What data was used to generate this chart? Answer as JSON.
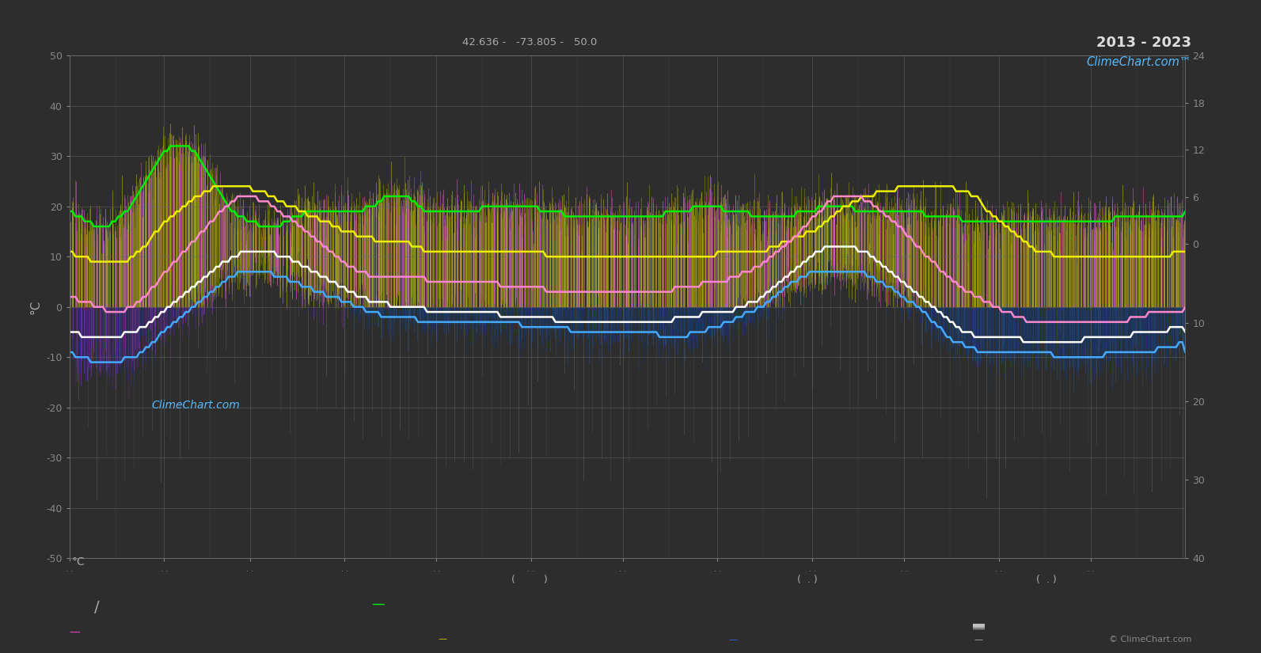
{
  "title_top": "2013 - 2023",
  "subtitle": "42.636 -   -73.805 -   50.0",
  "ylabel_left": "°C",
  "background_color": "#2d2d2d",
  "plot_bg_color": "#2d2d2d",
  "grid_color": "#666666",
  "ylim_left": [
    -50,
    50
  ],
  "ylim_right": [
    -40,
    24
  ],
  "n_days": 365,
  "abs_max_curve": [
    19,
    19,
    18,
    18,
    18,
    17,
    17,
    17,
    16,
    16,
    16,
    16,
    16,
    16,
    17,
    17,
    18,
    18,
    19,
    19,
    20,
    21,
    22,
    23,
    24,
    25,
    26,
    27,
    28,
    29,
    30,
    31,
    31,
    32,
    32,
    32,
    32,
    32,
    32,
    32,
    31,
    31,
    30,
    29,
    28,
    27,
    26,
    25,
    24,
    23,
    22,
    21,
    20,
    19,
    19,
    18,
    18,
    18,
    17,
    17,
    17,
    17,
    16,
    16,
    16,
    16,
    16,
    16,
    16,
    16,
    17,
    17,
    17,
    18,
    18,
    18,
    18,
    19,
    19,
    19,
    19,
    19,
    19,
    19,
    19,
    19,
    19,
    19,
    19,
    19,
    19,
    19,
    19,
    19,
    19,
    19,
    19,
    20,
    20,
    20,
    20,
    21,
    21,
    22,
    22,
    22,
    22,
    22,
    22,
    22,
    22,
    22,
    21,
    21,
    20,
    20,
    19,
    19,
    19,
    19,
    19,
    19,
    19,
    19,
    19,
    19,
    19,
    19,
    19,
    19,
    19,
    19,
    19,
    19,
    19,
    20,
    20,
    20,
    20,
    20,
    20,
    20,
    20,
    20,
    20,
    20,
    20,
    20,
    20,
    20,
    20,
    20,
    20,
    20,
    19,
    19,
    19,
    19,
    19,
    19,
    19,
    19,
    18,
    18,
    18,
    18,
    18,
    18,
    18,
    18,
    18,
    18,
    18,
    18,
    18,
    18,
    18,
    18,
    18,
    18,
    18,
    18,
    18,
    18,
    18,
    18,
    18,
    18,
    18,
    18,
    18,
    18,
    18,
    18,
    18,
    19,
    19,
    19,
    19,
    19,
    19,
    19,
    19,
    19,
    20,
    20,
    20,
    20,
    20,
    20,
    20,
    20,
    20,
    20,
    19,
    19,
    19,
    19,
    19,
    19,
    19,
    19,
    19,
    18,
    18,
    18,
    18,
    18,
    18,
    18,
    18,
    18,
    18,
    18,
    18,
    18,
    18,
    18,
    19,
    19,
    19,
    19,
    19,
    19,
    19,
    20,
    20,
    20,
    20,
    20,
    20,
    20,
    20,
    20,
    20,
    20,
    20,
    19,
    19,
    19,
    19,
    19,
    19,
    19,
    19,
    19,
    19,
    19,
    19,
    19,
    19,
    19,
    19,
    19,
    19,
    19,
    19,
    19,
    19,
    19,
    18,
    18,
    18,
    18,
    18,
    18,
    18,
    18,
    18,
    18,
    18,
    18,
    17,
    17,
    17,
    17,
    17,
    17,
    17,
    17,
    17,
    17,
    17,
    17,
    17,
    17,
    17,
    17,
    17,
    17,
    17,
    17,
    17,
    17,
    17,
    17,
    17,
    17,
    17,
    17,
    17,
    17,
    17,
    17,
    17,
    17,
    17,
    17,
    17,
    17,
    17,
    17,
    17,
    17,
    17,
    17,
    17,
    17,
    17,
    17,
    17,
    17,
    18,
    18,
    18,
    18,
    18,
    18,
    18,
    18,
    18,
    18,
    18,
    18,
    18,
    18,
    18,
    18,
    18,
    18,
    18,
    18,
    18,
    18,
    18,
    19
  ],
  "max_temp_curve": [
    11,
    11,
    10,
    10,
    10,
    10,
    10,
    9,
    9,
    9,
    9,
    9,
    9,
    9,
    9,
    9,
    9,
    9,
    9,
    9,
    10,
    10,
    11,
    11,
    12,
    12,
    13,
    14,
    15,
    15,
    16,
    17,
    17,
    18,
    18,
    19,
    19,
    20,
    20,
    21,
    21,
    22,
    22,
    22,
    23,
    23,
    23,
    24,
    24,
    24,
    24,
    24,
    24,
    24,
    24,
    24,
    24,
    24,
    24,
    24,
    23,
    23,
    23,
    23,
    23,
    22,
    22,
    22,
    21,
    21,
    21,
    20,
    20,
    20,
    20,
    19,
    19,
    19,
    18,
    18,
    18,
    18,
    17,
    17,
    17,
    17,
    16,
    16,
    16,
    15,
    15,
    15,
    15,
    15,
    14,
    14,
    14,
    14,
    14,
    14,
    13,
    13,
    13,
    13,
    13,
    13,
    13,
    13,
    13,
    13,
    13,
    13,
    12,
    12,
    12,
    12,
    11,
    11,
    11,
    11,
    11,
    11,
    11,
    11,
    11,
    11,
    11,
    11,
    11,
    11,
    11,
    11,
    11,
    11,
    11,
    11,
    11,
    11,
    11,
    11,
    11,
    11,
    11,
    11,
    11,
    11,
    11,
    11,
    11,
    11,
    11,
    11,
    11,
    11,
    11,
    11,
    10,
    10,
    10,
    10,
    10,
    10,
    10,
    10,
    10,
    10,
    10,
    10,
    10,
    10,
    10,
    10,
    10,
    10,
    10,
    10,
    10,
    10,
    10,
    10,
    10,
    10,
    10,
    10,
    10,
    10,
    10,
    10,
    10,
    10,
    10,
    10,
    10,
    10,
    10,
    10,
    10,
    10,
    10,
    10,
    10,
    10,
    10,
    10,
    10,
    10,
    10,
    10,
    10,
    10,
    10,
    10,
    11,
    11,
    11,
    11,
    11,
    11,
    11,
    11,
    11,
    11,
    11,
    11,
    11,
    11,
    11,
    11,
    11,
    12,
    12,
    12,
    12,
    13,
    13,
    13,
    13,
    14,
    14,
    14,
    14,
    15,
    15,
    15,
    15,
    16,
    16,
    17,
    17,
    18,
    18,
    19,
    19,
    20,
    20,
    20,
    21,
    21,
    21,
    22,
    22,
    22,
    22,
    22,
    23,
    23,
    23,
    23,
    23,
    23,
    23,
    24,
    24,
    24,
    24,
    24,
    24,
    24,
    24,
    24,
    24,
    24,
    24,
    24,
    24,
    24,
    24,
    24,
    24,
    24,
    23,
    23,
    23,
    23,
    23,
    22,
    22,
    22,
    21,
    20,
    19,
    19,
    18,
    18,
    17,
    17,
    16,
    16,
    15,
    15,
    14,
    14,
    13,
    13,
    12,
    12,
    11,
    11,
    11,
    11,
    11,
    11,
    10,
    10,
    10,
    10,
    10,
    10,
    10,
    10,
    10,
    10,
    10,
    10,
    10,
    10,
    10,
    10,
    10,
    10,
    10,
    10,
    10,
    10,
    10,
    10,
    10,
    10,
    10,
    10,
    10,
    10,
    10,
    10,
    10,
    10,
    10,
    10,
    10,
    10,
    10,
    11,
    11,
    11,
    11,
    11
  ],
  "mean_temp_curve": [
    2,
    2,
    2,
    1,
    1,
    1,
    1,
    1,
    0,
    0,
    0,
    0,
    -1,
    -1,
    -1,
    -1,
    -1,
    -1,
    -1,
    0,
    0,
    0,
    1,
    1,
    2,
    2,
    3,
    4,
    4,
    5,
    6,
    7,
    7,
    8,
    9,
    9,
    10,
    11,
    11,
    12,
    13,
    13,
    14,
    15,
    15,
    16,
    17,
    17,
    18,
    19,
    19,
    20,
    20,
    21,
    21,
    22,
    22,
    22,
    22,
    22,
    22,
    22,
    21,
    21,
    21,
    21,
    20,
    20,
    19,
    19,
    18,
    18,
    18,
    17,
    17,
    16,
    16,
    15,
    15,
    14,
    14,
    13,
    13,
    12,
    12,
    11,
    11,
    10,
    10,
    9,
    9,
    8,
    8,
    8,
    7,
    7,
    7,
    7,
    6,
    6,
    6,
    6,
    6,
    6,
    6,
    6,
    6,
    6,
    6,
    6,
    6,
    6,
    6,
    6,
    6,
    6,
    6,
    5,
    5,
    5,
    5,
    5,
    5,
    5,
    5,
    5,
    5,
    5,
    5,
    5,
    5,
    5,
    5,
    5,
    5,
    5,
    5,
    5,
    5,
    5,
    5,
    4,
    4,
    4,
    4,
    4,
    4,
    4,
    4,
    4,
    4,
    4,
    4,
    4,
    4,
    4,
    3,
    3,
    3,
    3,
    3,
    3,
    3,
    3,
    3,
    3,
    3,
    3,
    3,
    3,
    3,
    3,
    3,
    3,
    3,
    3,
    3,
    3,
    3,
    3,
    3,
    3,
    3,
    3,
    3,
    3,
    3,
    3,
    3,
    3,
    3,
    3,
    3,
    3,
    3,
    3,
    3,
    3,
    4,
    4,
    4,
    4,
    4,
    4,
    4,
    4,
    4,
    5,
    5,
    5,
    5,
    5,
    5,
    5,
    5,
    5,
    6,
    6,
    6,
    6,
    7,
    7,
    7,
    7,
    8,
    8,
    8,
    9,
    9,
    10,
    10,
    11,
    11,
    12,
    12,
    13,
    13,
    14,
    14,
    15,
    16,
    16,
    17,
    18,
    18,
    19,
    19,
    20,
    21,
    21,
    22,
    22,
    22,
    22,
    22,
    22,
    22,
    22,
    22,
    22,
    21,
    21,
    21,
    20,
    20,
    19,
    19,
    18,
    18,
    17,
    17,
    16,
    16,
    15,
    14,
    14,
    13,
    12,
    12,
    11,
    10,
    10,
    9,
    9,
    8,
    7,
    7,
    6,
    6,
    5,
    5,
    4,
    4,
    3,
    3,
    3,
    2,
    2,
    2,
    1,
    1,
    1,
    0,
    0,
    0,
    -1,
    -1,
    -1,
    -1,
    -2,
    -2,
    -2,
    -2,
    -3,
    -3,
    -3,
    -3,
    -3,
    -3,
    -3,
    -3,
    -3,
    -3,
    -3,
    -3,
    -3,
    -3,
    -3,
    -3,
    -3,
    -3,
    -3,
    -3,
    -3,
    -3,
    -3,
    -3,
    -3,
    -3,
    -3,
    -3,
    -3,
    -3,
    -3,
    -3,
    -3,
    -3,
    -2,
    -2,
    -2,
    -2,
    -2,
    -2,
    -1,
    -1,
    -1,
    -1,
    -1,
    -1,
    -1,
    -1,
    -1,
    -1,
    -1,
    -1,
    0
  ],
  "min_temp_curve": [
    -5,
    -5,
    -5,
    -5,
    -6,
    -6,
    -6,
    -6,
    -6,
    -6,
    -6,
    -6,
    -6,
    -6,
    -6,
    -6,
    -6,
    -6,
    -5,
    -5,
    -5,
    -5,
    -5,
    -4,
    -4,
    -4,
    -3,
    -3,
    -2,
    -2,
    -1,
    -1,
    0,
    0,
    1,
    1,
    2,
    2,
    3,
    3,
    4,
    4,
    5,
    5,
    6,
    6,
    7,
    7,
    8,
    8,
    9,
    9,
    9,
    10,
    10,
    10,
    11,
    11,
    11,
    11,
    11,
    11,
    11,
    11,
    11,
    11,
    11,
    11,
    10,
    10,
    10,
    10,
    10,
    9,
    9,
    9,
    8,
    8,
    8,
    7,
    7,
    7,
    6,
    6,
    6,
    5,
    5,
    5,
    4,
    4,
    4,
    3,
    3,
    3,
    2,
    2,
    2,
    2,
    1,
    1,
    1,
    1,
    1,
    1,
    1,
    0,
    0,
    0,
    0,
    0,
    0,
    0,
    0,
    0,
    0,
    0,
    0,
    -1,
    -1,
    -1,
    -1,
    -1,
    -1,
    -1,
    -1,
    -1,
    -1,
    -1,
    -1,
    -1,
    -1,
    -1,
    -1,
    -1,
    -1,
    -1,
    -1,
    -1,
    -1,
    -1,
    -1,
    -2,
    -2,
    -2,
    -2,
    -2,
    -2,
    -2,
    -2,
    -2,
    -2,
    -2,
    -2,
    -2,
    -2,
    -2,
    -2,
    -2,
    -2,
    -3,
    -3,
    -3,
    -3,
    -3,
    -3,
    -3,
    -3,
    -3,
    -3,
    -3,
    -3,
    -3,
    -3,
    -3,
    -3,
    -3,
    -3,
    -3,
    -3,
    -3,
    -3,
    -3,
    -3,
    -3,
    -3,
    -3,
    -3,
    -3,
    -3,
    -3,
    -3,
    -3,
    -3,
    -3,
    -3,
    -3,
    -3,
    -3,
    -2,
    -2,
    -2,
    -2,
    -2,
    -2,
    -2,
    -2,
    -2,
    -1,
    -1,
    -1,
    -1,
    -1,
    -1,
    -1,
    -1,
    -1,
    -1,
    -1,
    0,
    0,
    0,
    0,
    1,
    1,
    1,
    1,
    2,
    2,
    3,
    3,
    4,
    4,
    5,
    5,
    6,
    6,
    7,
    7,
    8,
    8,
    9,
    9,
    10,
    10,
    11,
    11,
    11,
    12,
    12,
    12,
    12,
    12,
    12,
    12,
    12,
    12,
    12,
    12,
    11,
    11,
    11,
    11,
    10,
    10,
    9,
    9,
    8,
    8,
    7,
    7,
    6,
    6,
    5,
    5,
    4,
    4,
    3,
    3,
    2,
    2,
    1,
    1,
    0,
    0,
    -1,
    -1,
    -2,
    -2,
    -3,
    -3,
    -4,
    -4,
    -5,
    -5,
    -5,
    -5,
    -6,
    -6,
    -6,
    -6,
    -6,
    -6,
    -6,
    -6,
    -6,
    -6,
    -6,
    -6,
    -6,
    -6,
    -6,
    -6,
    -7,
    -7,
    -7,
    -7,
    -7,
    -7,
    -7,
    -7,
    -7,
    -7,
    -7,
    -7,
    -7,
    -7,
    -7,
    -7,
    -7,
    -7,
    -7,
    -7,
    -6,
    -6,
    -6,
    -6,
    -6,
    -6,
    -6,
    -6,
    -6,
    -6,
    -6,
    -6,
    -6,
    -6,
    -6,
    -6,
    -5,
    -5,
    -5,
    -5,
    -5,
    -5,
    -5,
    -5,
    -5,
    -5,
    -5,
    -5,
    -4,
    -4,
    -4,
    -4,
    -4,
    -5
  ],
  "abs_min_curve": [
    -9,
    -9,
    -10,
    -10,
    -10,
    -10,
    -10,
    -11,
    -11,
    -11,
    -11,
    -11,
    -11,
    -11,
    -11,
    -11,
    -11,
    -11,
    -10,
    -10,
    -10,
    -10,
    -10,
    -9,
    -9,
    -8,
    -8,
    -7,
    -7,
    -6,
    -5,
    -5,
    -4,
    -4,
    -3,
    -3,
    -2,
    -2,
    -1,
    -1,
    0,
    0,
    1,
    1,
    2,
    2,
    3,
    3,
    4,
    4,
    5,
    5,
    6,
    6,
    6,
    7,
    7,
    7,
    7,
    7,
    7,
    7,
    7,
    7,
    7,
    7,
    7,
    6,
    6,
    6,
    6,
    6,
    5,
    5,
    5,
    5,
    4,
    4,
    4,
    4,
    3,
    3,
    3,
    3,
    2,
    2,
    2,
    2,
    2,
    1,
    1,
    1,
    1,
    0,
    0,
    0,
    0,
    -1,
    -1,
    -1,
    -1,
    -1,
    -2,
    -2,
    -2,
    -2,
    -2,
    -2,
    -2,
    -2,
    -2,
    -2,
    -2,
    -2,
    -3,
    -3,
    -3,
    -3,
    -3,
    -3,
    -3,
    -3,
    -3,
    -3,
    -3,
    -3,
    -3,
    -3,
    -3,
    -3,
    -3,
    -3,
    -3,
    -3,
    -3,
    -3,
    -3,
    -3,
    -3,
    -3,
    -3,
    -3,
    -3,
    -3,
    -3,
    -3,
    -3,
    -3,
    -4,
    -4,
    -4,
    -4,
    -4,
    -4,
    -4,
    -4,
    -4,
    -4,
    -4,
    -4,
    -4,
    -4,
    -4,
    -4,
    -5,
    -5,
    -5,
    -5,
    -5,
    -5,
    -5,
    -5,
    -5,
    -5,
    -5,
    -5,
    -5,
    -5,
    -5,
    -5,
    -5,
    -5,
    -5,
    -5,
    -5,
    -5,
    -5,
    -5,
    -5,
    -5,
    -5,
    -5,
    -5,
    -6,
    -6,
    -6,
    -6,
    -6,
    -6,
    -6,
    -6,
    -6,
    -6,
    -5,
    -5,
    -5,
    -5,
    -5,
    -5,
    -4,
    -4,
    -4,
    -4,
    -4,
    -3,
    -3,
    -3,
    -3,
    -2,
    -2,
    -2,
    -1,
    -1,
    -1,
    -1,
    0,
    0,
    0,
    1,
    1,
    2,
    2,
    3,
    3,
    4,
    4,
    5,
    5,
    5,
    6,
    6,
    6,
    7,
    7,
    7,
    7,
    7,
    7,
    7,
    7,
    7,
    7,
    7,
    7,
    7,
    7,
    7,
    7,
    7,
    7,
    7,
    6,
    6,
    6,
    5,
    5,
    5,
    4,
    4,
    4,
    3,
    3,
    2,
    2,
    1,
    1,
    1,
    0,
    0,
    -1,
    -1,
    -2,
    -3,
    -3,
    -4,
    -4,
    -5,
    -6,
    -6,
    -7,
    -7,
    -7,
    -7,
    -8,
    -8,
    -8,
    -8,
    -9,
    -9,
    -9,
    -9,
    -9,
    -9,
    -9,
    -9,
    -9,
    -9,
    -9,
    -9,
    -9,
    -9,
    -9,
    -9,
    -9,
    -9,
    -9,
    -9,
    -9,
    -9,
    -9,
    -9,
    -9,
    -10,
    -10,
    -10,
    -10,
    -10,
    -10,
    -10,
    -10,
    -10,
    -10,
    -10,
    -10,
    -10,
    -10,
    -10,
    -10,
    -10,
    -9,
    -9,
    -9,
    -9,
    -9,
    -9,
    -9,
    -9,
    -9,
    -9,
    -9,
    -9,
    -9,
    -9,
    -9,
    -9,
    -9,
    -8,
    -8,
    -8,
    -8,
    -8,
    -8,
    -8,
    -7,
    -7,
    -9
  ]
}
